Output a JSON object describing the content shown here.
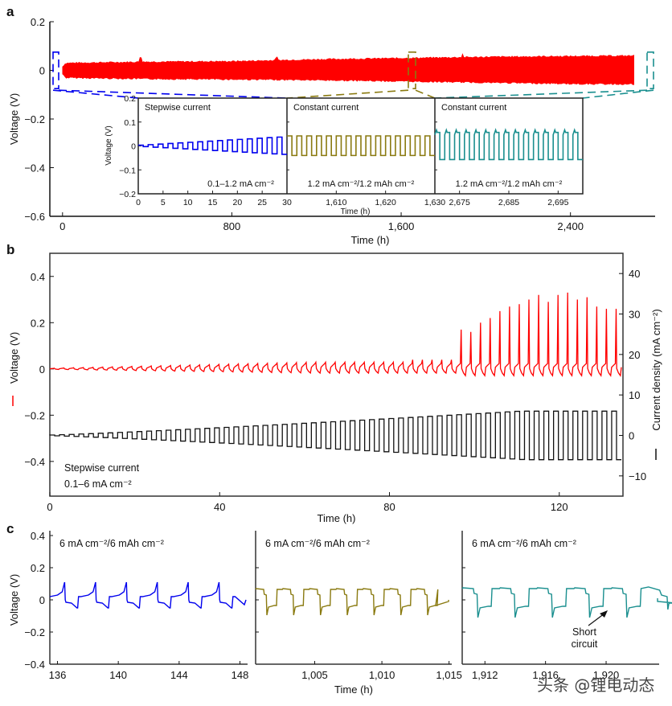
{
  "colors": {
    "red": "#ff0000",
    "blue": "#0000ee",
    "olive": "#8a7a10",
    "teal": "#1a8f8f",
    "black": "#111111",
    "axis": "#333333"
  },
  "watermark": "头条 @锂电动态",
  "chart_data": [
    {
      "panel": "a",
      "type": "area",
      "xlabel": "Time (h)",
      "ylabel": "Voltage (V)",
      "xlim": [
        -60,
        2800
      ],
      "ylim": [
        -0.6,
        0.2
      ],
      "xticks": [
        {
          "v": 0,
          "label": "0"
        },
        {
          "v": 800,
          "label": "800"
        },
        {
          "v": 1600,
          "label": "1,600"
        },
        {
          "v": 2400,
          "label": "2,400"
        }
      ],
      "yticks": [
        {
          "v": 0.2,
          "label": "0.2"
        },
        {
          "v": 0,
          "label": "0"
        },
        {
          "v": -0.2,
          "label": "−0.2"
        },
        {
          "v": -0.4,
          "label": "−0.4"
        },
        {
          "v": -0.6,
          "label": "−0.6"
        }
      ],
      "series": [
        {
          "name": "Voltage envelope",
          "color": "red",
          "x": [
            0,
            400,
            800,
            1200,
            1600,
            2000,
            2400,
            2700
          ],
          "upper": [
            0.03,
            0.035,
            0.037,
            0.045,
            0.05,
            0.055,
            0.058,
            0.06
          ],
          "lower": [
            -0.03,
            -0.035,
            -0.037,
            -0.04,
            -0.045,
            -0.05,
            -0.055,
            -0.057
          ]
        }
      ],
      "highlight_boxes": [
        {
          "color": "blue",
          "x": [
            0,
            30
          ]
        },
        {
          "color": "olive",
          "x": [
            1600,
            1630
          ]
        },
        {
          "color": "teal",
          "x": [
            2670,
            2700
          ]
        }
      ],
      "insets": [
        {
          "title": "Stepwise current",
          "annotation": "0.1–1.2 mA cm⁻²",
          "color": "blue",
          "xlim": [
            0,
            30
          ],
          "ylim": [
            -0.2,
            0.2
          ],
          "xticks": [
            {
              "v": 0,
              "label": "0"
            },
            {
              "v": 5,
              "label": "5"
            },
            {
              "v": 10,
              "label": "10"
            },
            {
              "v": 15,
              "label": "15"
            },
            {
              "v": 20,
              "label": "20"
            },
            {
              "v": 25,
              "label": "25"
            },
            {
              "v": 30,
              "label": "30"
            }
          ],
          "yticks": [
            {
              "v": 0.2,
              "label": "0.2"
            },
            {
              "v": 0.1,
              "label": "0.1"
            },
            {
              "v": 0,
              "label": "0"
            },
            {
              "v": -0.1,
              "label": "−0.1"
            },
            {
              "v": -0.2,
              "label": "−0.2"
            }
          ],
          "ylabel": "Voltage (V)",
          "cycles": 15,
          "amplitude_start": 0.003,
          "amplitude_end": 0.037
        },
        {
          "title": "Constant current",
          "annotation": "1.2 mA cm⁻²/1.2 mAh cm⁻²",
          "color": "olive",
          "xlim": [
            1600,
            1630
          ],
          "xticks": [
            {
              "v": 1610,
              "label": "1,610"
            },
            {
              "v": 1620,
              "label": "1,620"
            },
            {
              "v": 1630,
              "label": "1,630"
            }
          ],
          "cycles": 15,
          "amplitude_start": 0.042,
          "amplitude_end": 0.042
        },
        {
          "title": "Constant current",
          "annotation": "1.2 mA cm⁻²/1.2 mAh cm⁻²",
          "color": "teal",
          "xlim": [
            2670,
            2700
          ],
          "xticks": [
            {
              "v": 2675,
              "label": "2,675"
            },
            {
              "v": 2685,
              "label": "2,685"
            },
            {
              "v": 2695,
              "label": "2,695"
            }
          ],
          "cycles": 15,
          "amplitude_start": 0.06,
          "amplitude_end": 0.06
        }
      ],
      "inset_xlabel": "Time (h)"
    },
    {
      "panel": "b",
      "type": "line",
      "xlabel": "Time (h)",
      "ylabel_left": "Voltage (V)",
      "ylabel_right": "Current density (mA cm⁻²)",
      "xlim": [
        0,
        135
      ],
      "ylim_left": [
        -0.55,
        0.5
      ],
      "ylim_right": [
        -15,
        45
      ],
      "xticks": [
        {
          "v": 0,
          "label": "0"
        },
        {
          "v": 40,
          "label": "40"
        },
        {
          "v": 80,
          "label": "80"
        },
        {
          "v": 120,
          "label": "120"
        }
      ],
      "yticks_left": [
        {
          "v": 0.4,
          "label": "0.4"
        },
        {
          "v": 0.2,
          "label": "0.2"
        },
        {
          "v": 0,
          "label": "0"
        },
        {
          "v": -0.2,
          "label": "−0.2"
        },
        {
          "v": -0.4,
          "label": "−0.4"
        }
      ],
      "yticks_right": [
        {
          "v": 40,
          "label": "40"
        },
        {
          "v": 30,
          "label": "30"
        },
        {
          "v": 20,
          "label": "20"
        },
        {
          "v": 10,
          "label": "10"
        },
        {
          "v": 0,
          "label": "0"
        },
        {
          "v": -10,
          "label": "−10"
        }
      ],
      "annotation": [
        "Stepwise current",
        "0.1–6 mA cm⁻²"
      ],
      "series": [
        {
          "name": "Voltage",
          "axis": "left",
          "color": "red",
          "cycles": 59,
          "spike_peaks_V": [
            0.17,
            0.16,
            0.2,
            0.22,
            0.25,
            0.27,
            0.28,
            0.3,
            0.32,
            0.29,
            0.32,
            0.33,
            0.3,
            0.31,
            0.27,
            0.26,
            0.26
          ]
        },
        {
          "name": "Current density",
          "axis": "right",
          "color": "black",
          "cycles": 59,
          "amplitude_start": 0.1,
          "amplitude_end": 6
        }
      ]
    },
    {
      "panel": "c",
      "type": "line",
      "ylabel": "Voltage (V)",
      "xlabel": "Time (h)",
      "ylim": [
        -0.4,
        0.4
      ],
      "yticks": [
        {
          "v": 0.4,
          "label": "0.4"
        },
        {
          "v": 0.2,
          "label": "0.2"
        },
        {
          "v": 0,
          "label": "0"
        },
        {
          "v": -0.2,
          "label": "−0.2"
        },
        {
          "v": -0.4,
          "label": "−0.4"
        }
      ],
      "subplots": [
        {
          "title": "6 mA cm⁻²/6 mAh cm⁻²",
          "color": "blue",
          "xlim": [
            135.5,
            148.5
          ],
          "xticks": [
            {
              "v": 136,
              "label": "136"
            },
            {
              "v": 140,
              "label": "140"
            },
            {
              "v": 144,
              "label": "144"
            },
            {
              "v": 148,
              "label": "148"
            }
          ],
          "cycles": 6,
          "shape": "spike",
          "plateau_V": 0.03,
          "peak_V": 0.11,
          "trough_V": -0.05
        },
        {
          "title": "6 mA cm⁻²/6 mAh cm⁻²",
          "color": "olive",
          "xlim": [
            1000.6,
            1015.2
          ],
          "xticks": [
            {
              "v": 1005,
              "label": "1,005"
            },
            {
              "v": 1010,
              "label": "1,010"
            },
            {
              "v": 1015,
              "label": "1,015"
            }
          ],
          "cycles": 7,
          "shape": "square",
          "plateau_V": 0.065,
          "low_V": -0.035,
          "trough_V": -0.095
        },
        {
          "title": "6 mA cm⁻²/6 mAh cm⁻²",
          "color": "teal",
          "xlim": [
            1910.5,
            1923.5
          ],
          "xticks": [
            {
              "v": 1912,
              "label": "1,912"
            },
            {
              "v": 1916,
              "label": "1,916"
            },
            {
              "v": 1920,
              "label": "1,920"
            }
          ],
          "cycles": 5,
          "shape": "square",
          "plateau_V": 0.07,
          "low_V": -0.04,
          "trough_V": -0.11,
          "annotation": [
            "Short",
            "circuit"
          ],
          "annotation_x": 1919.6
        }
      ]
    }
  ]
}
